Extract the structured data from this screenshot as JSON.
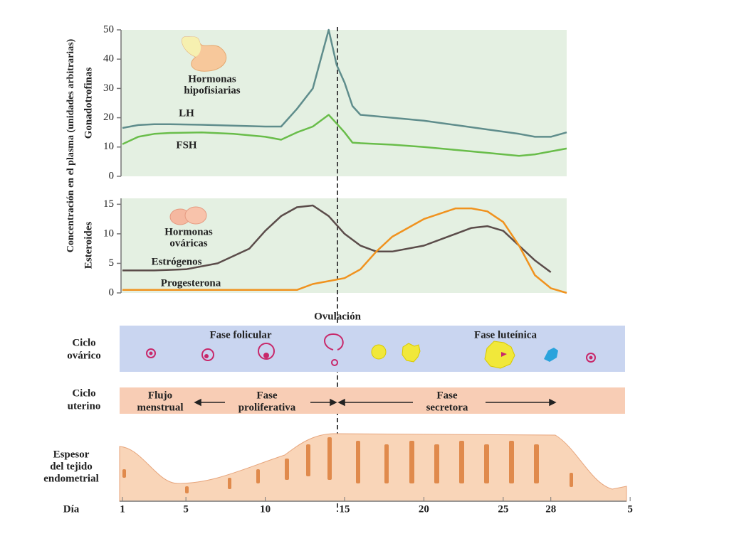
{
  "chart_data": [
    {
      "type": "line",
      "ylabel": "Gonadotrofinas",
      "annotation": [
        "Hormonas",
        "hipofisiarias"
      ],
      "x": [
        1,
        2,
        3,
        4,
        6,
        8,
        10,
        11,
        12,
        13,
        14,
        14.5,
        15,
        15.5,
        16,
        18,
        20,
        22,
        24,
        26,
        27,
        28,
        29
      ],
      "xlim": [
        1,
        29
      ],
      "ylim": [
        0,
        50
      ],
      "yticks": [
        0,
        10,
        20,
        30,
        40,
        50
      ],
      "series": [
        {
          "name": "LH",
          "color": "#5f8d8c",
          "values": [
            16.5,
            17.5,
            17.8,
            17.8,
            17.6,
            17.3,
            17,
            17,
            23,
            30,
            50,
            38,
            32,
            24,
            21,
            20,
            19,
            17.5,
            16,
            14.5,
            13.5,
            13.5,
            15
          ]
        },
        {
          "name": "FSH",
          "color": "#69bd4a",
          "values": [
            11,
            13.5,
            14.5,
            14.8,
            15,
            14.5,
            13.5,
            12.5,
            15,
            17,
            21,
            18,
            15,
            11.5,
            11.3,
            10.8,
            10,
            9,
            8,
            7,
            7.5,
            8.5,
            9.5
          ]
        }
      ]
    },
    {
      "type": "line",
      "ylabel": "Esteroides",
      "annotation": [
        "Hormonas",
        "ováricas"
      ],
      "xlabel": "Día",
      "x": [
        1,
        3,
        5,
        7,
        9,
        10,
        11,
        12,
        13,
        14,
        15,
        16,
        17,
        18,
        20,
        22,
        23,
        24,
        25,
        26,
        27,
        28,
        29
      ],
      "xlim": [
        1,
        29
      ],
      "xticks": [
        1,
        5,
        10,
        15,
        20,
        25,
        28,
        {
          "value": 33,
          "label": "5"
        }
      ],
      "ylim": [
        0,
        16
      ],
      "yticks": [
        0,
        5,
        10,
        15
      ],
      "series": [
        {
          "name": "Estrógenos",
          "color": "#5b4c4a",
          "values": [
            3.8,
            3.8,
            4,
            5,
            7.5,
            10.5,
            13,
            14.5,
            14.8,
            13,
            10,
            8,
            7,
            7,
            8,
            10,
            11,
            11.3,
            10.5,
            8,
            5.5,
            3.5,
            null
          ]
        },
        {
          "name": "Progesterona",
          "color": "#f0921e",
          "values": [
            0.5,
            0.5,
            0.5,
            0.5,
            0.5,
            0.5,
            0.5,
            0.5,
            1.5,
            2,
            2.5,
            4,
            7,
            9.5,
            12.5,
            14.3,
            14.3,
            13.8,
            12,
            8,
            3,
            0.8,
            0
          ]
        }
      ]
    }
  ],
  "ylabel": "Concentración en el plasma (unidades arbitrarias)",
  "diagram": {
    "ovulation": "Ovulación",
    "ovarian_cycle": {
      "label": [
        "Ciclo",
        "ovárico"
      ],
      "phases": [
        "Fase folicular",
        "Fase luteínica"
      ]
    },
    "uterine_cycle": {
      "label": [
        "Ciclo",
        "uterino"
      ],
      "phases": [
        [
          "Flujo",
          "menstrual"
        ],
        [
          "Fase",
          "proliferativa"
        ],
        [
          "Fase",
          "secretora"
        ]
      ]
    },
    "endometrium": {
      "label": [
        "Espesor",
        "del tejido",
        "endometrial"
      ]
    }
  }
}
